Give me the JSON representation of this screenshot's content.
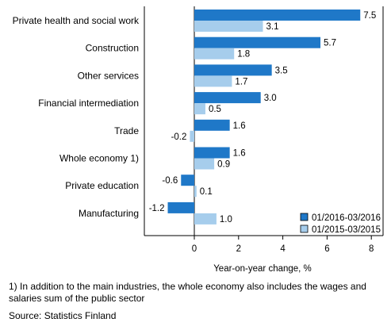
{
  "chart_data": {
    "type": "bar",
    "orientation": "horizontal",
    "categories": [
      "Private health and social work",
      "Construction",
      "Other services",
      "Financial intermediation",
      "Trade",
      "Whole economy 1)",
      "Private education",
      "Manufacturing"
    ],
    "series": [
      {
        "name": "01/2016-03/2016",
        "color": "#1f78c8",
        "values": [
          7.5,
          5.7,
          3.5,
          3.0,
          1.6,
          1.6,
          -0.6,
          -1.2
        ],
        "labels": [
          "7.5",
          "5.7",
          "3.5",
          "3.0",
          "1.6",
          "1.6",
          "-0.6",
          "-1.2"
        ]
      },
      {
        "name": "01/2015-03/2015",
        "color": "#a6cdec",
        "values": [
          3.1,
          1.8,
          1.7,
          0.5,
          -0.2,
          0.9,
          0.1,
          1.0
        ],
        "labels": [
          "3.1",
          "1.8",
          "1.7",
          "0.5",
          "-0.2",
          "0.9",
          "0.1",
          "1.0"
        ]
      }
    ],
    "xlabel": "Year-on-year change, %",
    "xlim": [
      -3,
      8.5
    ],
    "xticks": [
      0,
      2,
      4,
      6,
      8
    ],
    "legend_position": "bottom-right",
    "grid": false
  },
  "footnote": "1) In addition to the main industries, the whole economy also includes the wages and salaries sum of the public sector",
  "source": "Source: Statistics Finland"
}
